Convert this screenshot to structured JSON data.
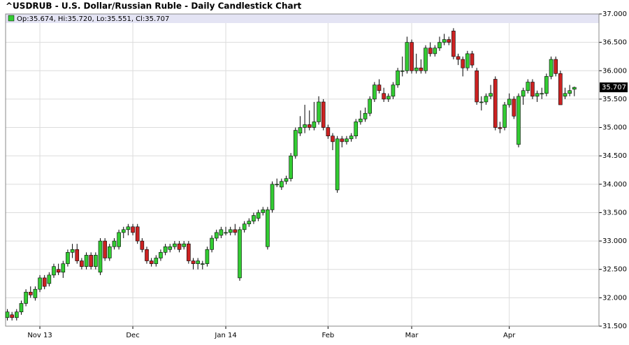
{
  "chart_data": {
    "type": "candlestick",
    "title": "^USDRUB - U.S. Dollar/Russian Ruble - Daily Candlestick Chart",
    "legend": "Op:35.674, Hi:35.720, Lo:35.551, Cl:35.707",
    "up_color": "#33cc33",
    "down_color": "#cc2222",
    "last_value": 35.707,
    "ylim": [
      31.5,
      37.0
    ],
    "yticks": [
      {
        "value": 31.5,
        "label": "31.500"
      },
      {
        "value": 32.0,
        "label": "32.000"
      },
      {
        "value": 32.5,
        "label": "32.500"
      },
      {
        "value": 33.0,
        "label": "33.000"
      },
      {
        "value": 33.5,
        "label": "33.500"
      },
      {
        "value": 34.0,
        "label": "34.000"
      },
      {
        "value": 34.5,
        "label": "34.500"
      },
      {
        "value": 35.0,
        "label": "35.000"
      },
      {
        "value": 35.5,
        "label": "35.500"
      },
      {
        "value": 36.0,
        "label": "36.000"
      },
      {
        "value": 36.5,
        "label": "36.500"
      },
      {
        "value": 37.0,
        "label": "37.000"
      }
    ],
    "grid": true,
    "categories": [
      null,
      null,
      null,
      null,
      null,
      null,
      null,
      "Nov 13",
      null,
      null,
      null,
      null,
      null,
      null,
      null,
      null,
      null,
      null,
      null,
      null,
      null,
      null,
      null,
      null,
      null,
      null,
      null,
      "Dec",
      null,
      null,
      null,
      null,
      null,
      null,
      null,
      null,
      null,
      null,
      null,
      null,
      null,
      null,
      null,
      null,
      null,
      null,
      null,
      "Jan 14",
      null,
      null,
      null,
      null,
      null,
      null,
      null,
      null,
      null,
      null,
      null,
      null,
      null,
      null,
      null,
      null,
      null,
      null,
      null,
      null,
      null,
      "Feb",
      null,
      null,
      null,
      null,
      null,
      null,
      null,
      null,
      null,
      null,
      null,
      null,
      null,
      null,
      null,
      null,
      null,
      "Mar",
      null,
      null,
      null,
      null,
      null,
      null,
      null,
      null,
      null,
      null,
      null,
      null,
      null,
      null,
      null,
      null,
      null,
      null,
      null,
      null,
      "Apr",
      null,
      null,
      null,
      null,
      null,
      null,
      null,
      null,
      null,
      null,
      null,
      null,
      null,
      null
    ],
    "candles": [
      [
        31.65,
        31.8,
        31.6,
        31.75
      ],
      [
        31.7,
        31.75,
        31.6,
        31.65
      ],
      [
        31.65,
        31.8,
        31.6,
        31.75
      ],
      [
        31.75,
        31.95,
        31.7,
        31.9
      ],
      [
        31.9,
        32.15,
        31.85,
        32.1
      ],
      [
        32.1,
        32.2,
        32.0,
        32.05
      ],
      [
        32.0,
        32.2,
        31.95,
        32.15
      ],
      [
        32.15,
        32.4,
        32.1,
        32.35
      ],
      [
        32.35,
        32.4,
        32.15,
        32.2
      ],
      [
        32.25,
        32.45,
        32.2,
        32.4
      ],
      [
        32.4,
        32.6,
        32.35,
        32.55
      ],
      [
        32.5,
        32.6,
        32.4,
        32.45
      ],
      [
        32.45,
        32.65,
        32.35,
        32.6
      ],
      [
        32.6,
        32.85,
        32.55,
        32.8
      ],
      [
        32.8,
        32.95,
        32.7,
        32.85
      ],
      [
        32.85,
        32.95,
        32.6,
        32.65
      ],
      [
        32.65,
        32.7,
        32.5,
        32.55
      ],
      [
        32.55,
        32.8,
        32.5,
        32.75
      ],
      [
        32.75,
        32.8,
        32.5,
        32.55
      ],
      [
        32.55,
        32.8,
        32.5,
        32.75
      ],
      [
        32.45,
        33.05,
        32.4,
        33.0
      ],
      [
        33.0,
        33.05,
        32.65,
        32.7
      ],
      [
        32.7,
        32.95,
        32.65,
        32.9
      ],
      [
        32.9,
        33.05,
        32.85,
        33.0
      ],
      [
        32.9,
        33.2,
        32.85,
        33.15
      ],
      [
        33.15,
        33.25,
        33.05,
        33.2
      ],
      [
        33.2,
        33.3,
        33.1,
        33.25
      ],
      [
        33.25,
        33.3,
        33.1,
        33.15
      ],
      [
        33.25,
        33.3,
        32.95,
        33.0
      ],
      [
        33.0,
        33.05,
        32.8,
        32.85
      ],
      [
        32.85,
        32.9,
        32.6,
        32.65
      ],
      [
        32.65,
        32.7,
        32.55,
        32.6
      ],
      [
        32.6,
        32.75,
        32.55,
        32.7
      ],
      [
        32.7,
        32.85,
        32.65,
        32.8
      ],
      [
        32.8,
        32.95,
        32.75,
        32.9
      ],
      [
        32.85,
        32.95,
        32.8,
        32.9
      ],
      [
        32.9,
        33.0,
        32.85,
        32.95
      ],
      [
        32.95,
        33.0,
        32.8,
        32.85
      ],
      [
        32.9,
        33.0,
        32.85,
        32.95
      ],
      [
        32.95,
        33.0,
        32.6,
        32.65
      ],
      [
        32.65,
        32.7,
        32.5,
        32.6
      ],
      [
        32.6,
        32.7,
        32.5,
        32.65
      ],
      [
        32.6,
        32.65,
        32.5,
        32.6
      ],
      [
        32.6,
        32.9,
        32.55,
        32.85
      ],
      [
        32.85,
        33.1,
        32.8,
        33.05
      ],
      [
        33.05,
        33.2,
        33.0,
        33.15
      ],
      [
        33.1,
        33.25,
        33.05,
        33.2
      ],
      [
        33.15,
        33.25,
        33.1,
        33.15
      ],
      [
        33.15,
        33.25,
        33.1,
        33.2
      ],
      [
        33.2,
        33.3,
        33.1,
        33.15
      ],
      [
        32.35,
        33.25,
        32.3,
        33.2
      ],
      [
        33.2,
        33.35,
        33.15,
        33.3
      ],
      [
        33.3,
        33.4,
        33.25,
        33.35
      ],
      [
        33.35,
        33.5,
        33.3,
        33.45
      ],
      [
        33.4,
        33.55,
        33.35,
        33.5
      ],
      [
        33.5,
        33.6,
        33.45,
        33.55
      ],
      [
        32.9,
        33.6,
        32.85,
        33.55
      ],
      [
        33.55,
        34.05,
        33.5,
        34.0
      ],
      [
        34.0,
        34.1,
        33.95,
        34.0
      ],
      [
        33.95,
        34.1,
        33.9,
        34.05
      ],
      [
        34.05,
        34.15,
        34.0,
        34.1
      ],
      [
        34.1,
        34.55,
        34.05,
        34.5
      ],
      [
        34.5,
        35.0,
        34.45,
        34.95
      ],
      [
        34.9,
        35.2,
        34.85,
        35.0
      ],
      [
        35.0,
        35.4,
        34.9,
        35.05
      ],
      [
        35.05,
        35.3,
        34.95,
        35.0
      ],
      [
        35.0,
        35.45,
        34.95,
        35.1
      ],
      [
        35.1,
        35.55,
        35.05,
        35.45
      ],
      [
        35.45,
        35.5,
        34.95,
        35.0
      ],
      [
        35.0,
        35.05,
        34.8,
        34.85
      ],
      [
        34.85,
        34.9,
        34.6,
        34.75
      ],
      [
        33.9,
        34.85,
        33.85,
        34.8
      ],
      [
        34.8,
        34.85,
        34.65,
        34.75
      ],
      [
        34.75,
        34.85,
        34.7,
        34.8
      ],
      [
        34.8,
        34.9,
        34.75,
        34.85
      ],
      [
        34.85,
        35.15,
        34.8,
        35.1
      ],
      [
        35.1,
        35.3,
        35.05,
        35.15
      ],
      [
        35.15,
        35.35,
        35.1,
        35.25
      ],
      [
        35.25,
        35.55,
        35.2,
        35.5
      ],
      [
        35.5,
        35.8,
        35.45,
        35.75
      ],
      [
        35.75,
        35.85,
        35.6,
        35.65
      ],
      [
        35.6,
        35.7,
        35.45,
        35.5
      ],
      [
        35.5,
        35.6,
        35.45,
        35.55
      ],
      [
        35.55,
        35.8,
        35.5,
        35.75
      ],
      [
        35.75,
        36.05,
        35.7,
        36.0
      ],
      [
        36.0,
        36.25,
        35.9,
        36.0
      ],
      [
        36.0,
        36.6,
        35.95,
        36.5
      ],
      [
        36.5,
        36.55,
        35.95,
        36.0
      ],
      [
        36.0,
        36.3,
        35.95,
        36.05
      ],
      [
        36.05,
        36.2,
        35.95,
        36.0
      ],
      [
        36.0,
        36.45,
        35.95,
        36.4
      ],
      [
        36.4,
        36.5,
        36.25,
        36.3
      ],
      [
        36.3,
        36.45,
        36.25,
        36.4
      ],
      [
        36.4,
        36.6,
        36.35,
        36.5
      ],
      [
        36.5,
        36.65,
        36.45,
        36.55
      ],
      [
        36.55,
        36.6,
        36.45,
        36.5
      ],
      [
        36.7,
        36.75,
        36.2,
        36.25
      ],
      [
        36.25,
        36.3,
        36.1,
        36.2
      ],
      [
        36.2,
        36.25,
        35.9,
        36.05
      ],
      [
        36.05,
        36.35,
        36.0,
        36.3
      ],
      [
        36.3,
        36.35,
        36.05,
        36.1
      ],
      [
        36.0,
        36.05,
        35.4,
        35.45
      ],
      [
        35.45,
        35.55,
        35.3,
        35.45
      ],
      [
        35.45,
        35.6,
        35.4,
        35.55
      ],
      [
        35.55,
        35.75,
        35.5,
        35.6
      ],
      [
        35.85,
        35.9,
        34.95,
        35.0
      ],
      [
        35.0,
        35.1,
        34.9,
        34.98
      ],
      [
        35.0,
        35.45,
        34.95,
        35.4
      ],
      [
        35.4,
        35.6,
        35.35,
        35.5
      ],
      [
        35.5,
        35.55,
        35.15,
        35.2
      ],
      [
        34.7,
        35.6,
        34.65,
        35.55
      ],
      [
        35.55,
        35.7,
        35.4,
        35.65
      ],
      [
        35.65,
        35.85,
        35.6,
        35.8
      ],
      [
        35.8,
        35.85,
        35.5,
        35.55
      ],
      [
        35.55,
        35.65,
        35.45,
        35.6
      ],
      [
        35.6,
        35.7,
        35.5,
        35.6
      ],
      [
        35.6,
        35.95,
        35.55,
        35.9
      ],
      [
        35.9,
        36.25,
        35.85,
        36.2
      ],
      [
        36.2,
        36.25,
        35.9,
        35.95
      ],
      [
        35.95,
        36.0,
        35.4,
        35.4
      ],
      [
        35.55,
        35.7,
        35.5,
        35.6
      ],
      [
        35.6,
        35.75,
        35.55,
        35.65
      ],
      [
        35.674,
        35.72,
        35.551,
        35.707
      ]
    ]
  }
}
